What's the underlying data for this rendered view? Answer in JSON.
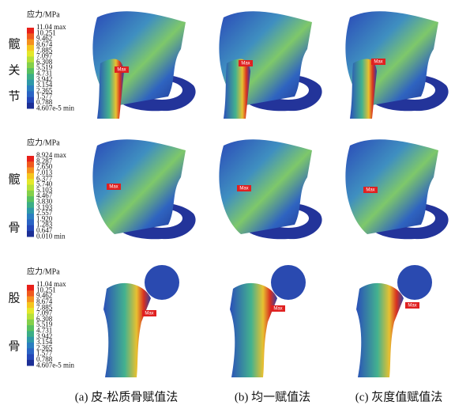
{
  "rows": [
    {
      "label_chars": [
        "髋",
        "关",
        "节"
      ],
      "legend_title": "应力/MPa",
      "legend_labels": [
        "11.04 max",
        "10.251",
        "9.462",
        "8.674",
        "7.885",
        "7.097",
        "6.308",
        "5.519",
        "4.731",
        "3.942",
        "3.154",
        "2.365",
        "1.577",
        "0.788",
        "4.607e-5 min"
      ],
      "max_labels": [
        "Max",
        "Max",
        "Max"
      ]
    },
    {
      "label_chars": [
        "髋",
        "骨"
      ],
      "legend_title": "应力/MPa",
      "legend_labels": [
        "8.924 max",
        "8.287",
        "7.650",
        "7.013",
        "6.377",
        "5.740",
        "5.103",
        "4.467",
        "3.830",
        "3.193",
        "2.557",
        "1.920",
        "1.283",
        "0.647",
        "0.010 min"
      ],
      "max_labels": [
        "Max",
        "Max",
        "Max"
      ]
    },
    {
      "label_chars": [
        "股",
        "骨"
      ],
      "legend_title": "应力/MPa",
      "legend_labels": [
        "11.04 max",
        "10.251",
        "9.462",
        "8.674",
        "7.885",
        "7.097",
        "6.308",
        "5.519",
        "4.731",
        "3.942",
        "3.154",
        "2.365",
        "1.577",
        "0.788",
        "4.607e-5 min"
      ],
      "max_labels": [
        "Max",
        "Max",
        "Max"
      ]
    }
  ],
  "captions": [
    "(a) 皮-松质骨赋值法",
    "(b) 均一赋值法",
    "(c) 灰度值赋值法"
  ]
}
